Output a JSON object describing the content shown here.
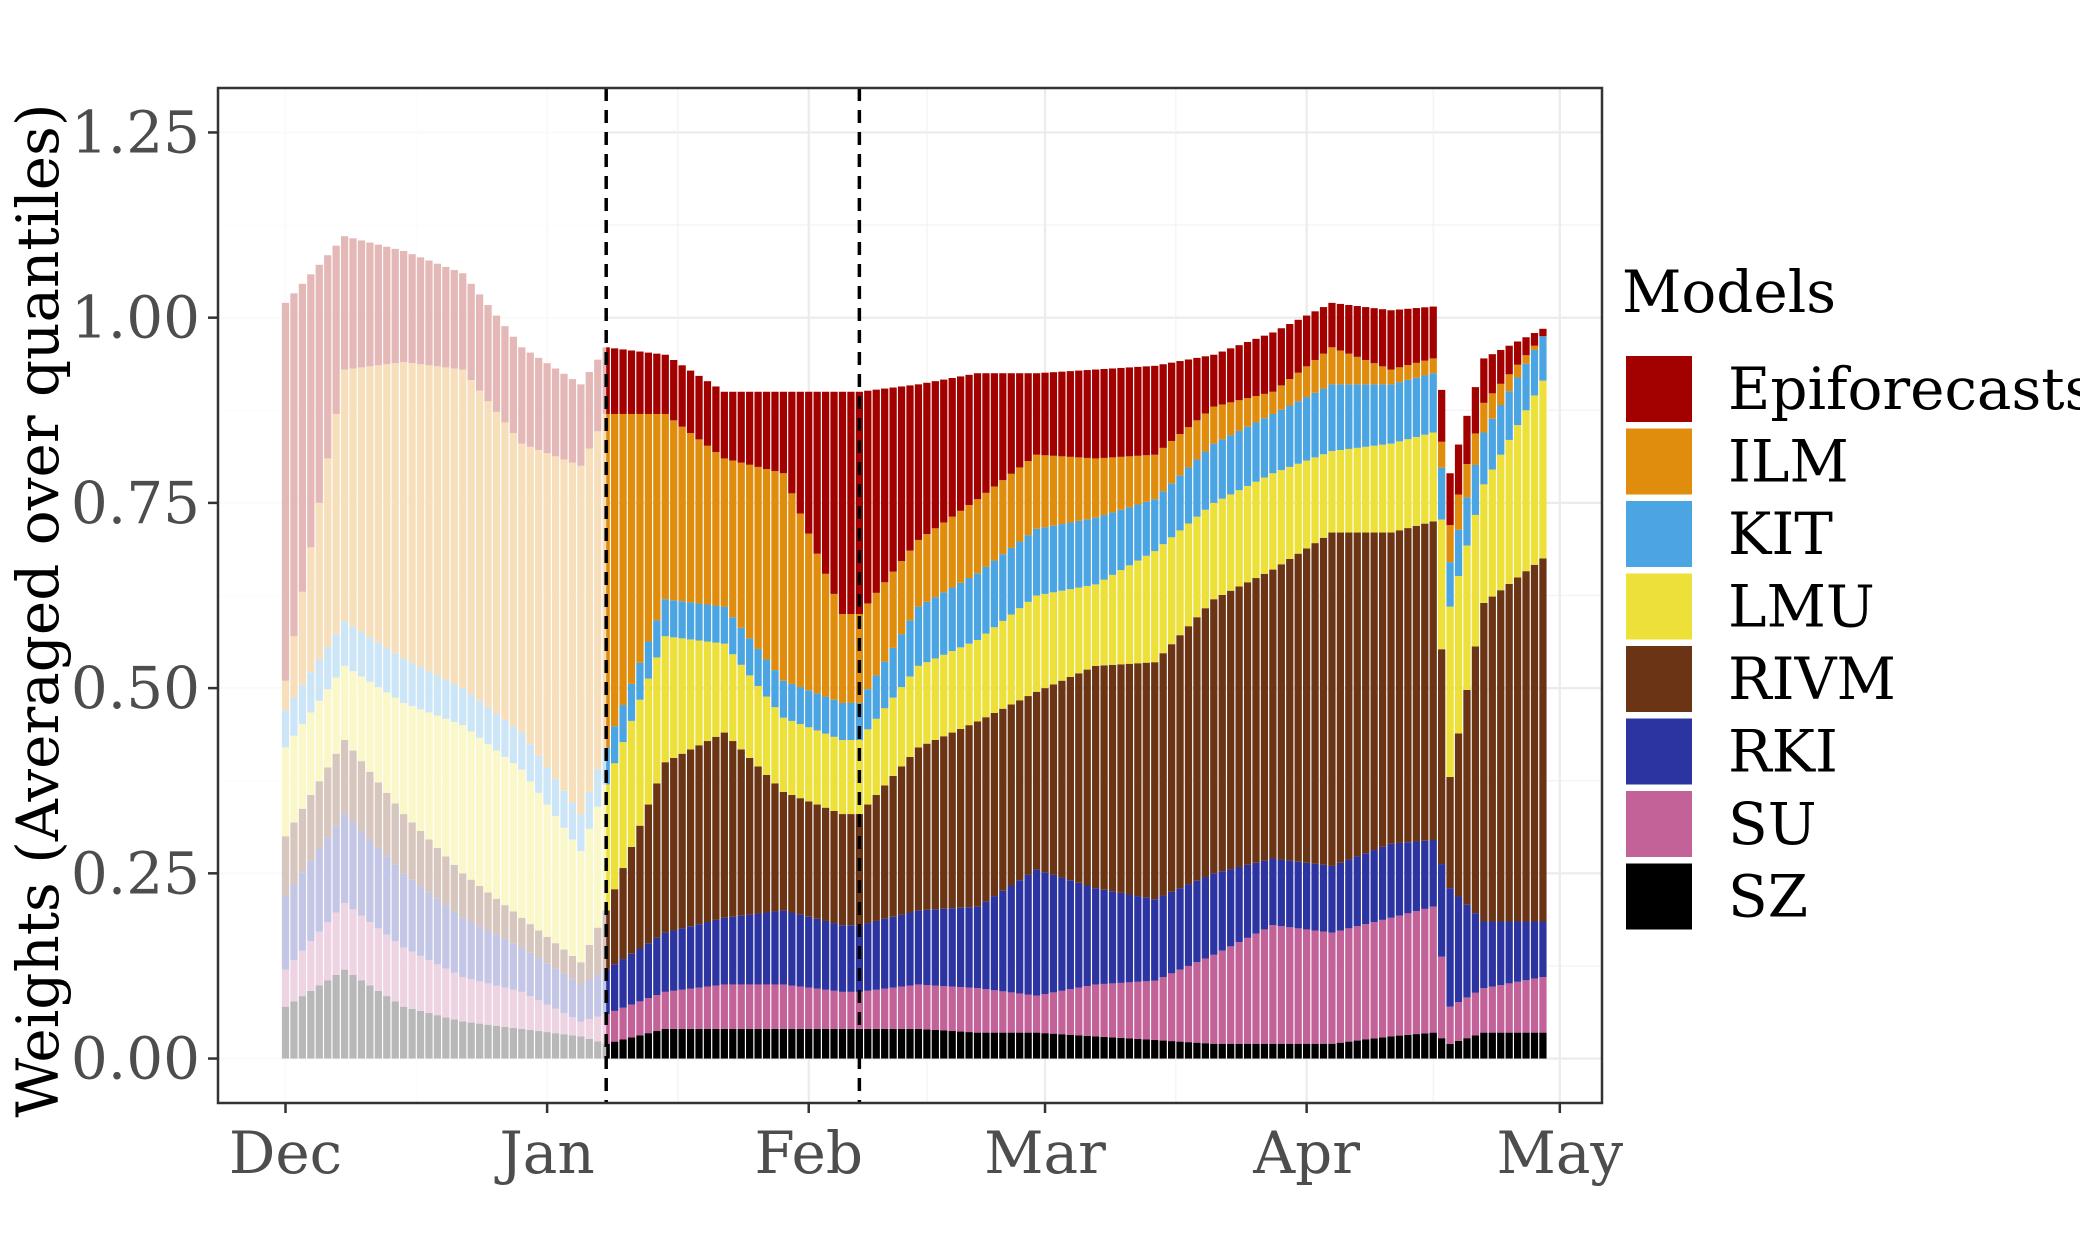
{
  "chart_data": {
    "type": "bar",
    "stacked": true,
    "ylabel": "Weights (Averaged over quantiles)",
    "xlabel": "",
    "ylim": [
      -0.06,
      1.31
    ],
    "yticks": [
      0.0,
      0.25,
      0.5,
      0.75,
      1.0,
      1.25
    ],
    "ytick_labels": [
      "0.00",
      "0.25",
      "0.50",
      "0.75",
      "1.00",
      "1.25"
    ],
    "xlim": [
      "2020-11-23",
      "2021-05-06"
    ],
    "x_ticks": [
      {
        "date": "2020-12-01",
        "label": "Dec"
      },
      {
        "date": "2021-01-01",
        "label": "Jan"
      },
      {
        "date": "2021-02-01",
        "label": "Feb"
      },
      {
        "date": "2021-03-01",
        "label": "Mar"
      },
      {
        "date": "2021-04-01",
        "label": "Apr"
      },
      {
        "date": "2021-05-01",
        "label": "May"
      }
    ],
    "grid": true,
    "legend": {
      "title": "Models",
      "position": "right"
    },
    "reference_lines": [
      {
        "date": "2021-01-08",
        "style": "dashed"
      },
      {
        "date": "2021-02-07",
        "style": "dashed"
      }
    ],
    "faded_before": "2021-01-08",
    "dates": [
      "2020-12-01",
      "2020-12-08",
      "2020-12-15",
      "2020-12-22",
      "2020-12-29",
      "2021-01-05",
      "2021-01-08",
      "2021-01-15",
      "2021-01-22",
      "2021-01-29",
      "2021-02-05",
      "2021-02-07",
      "2021-02-14",
      "2021-02-21",
      "2021-02-28",
      "2021-03-07",
      "2021-03-14",
      "2021-03-21",
      "2021-03-28",
      "2021-04-04",
      "2021-04-11",
      "2021-04-16",
      "2021-04-18",
      "2021-04-22",
      "2021-04-29"
    ],
    "series": [
      {
        "name": "SZ",
        "color": "#000000",
        "values": [
          0.07,
          0.12,
          0.07,
          0.05,
          0.04,
          0.03,
          0.02,
          0.04,
          0.04,
          0.04,
          0.04,
          0.04,
          0.04,
          0.035,
          0.035,
          0.03,
          0.025,
          0.02,
          0.02,
          0.02,
          0.03,
          0.035,
          0.02,
          0.035,
          0.035
        ]
      },
      {
        "name": "SU",
        "color": "#c36199",
        "values": [
          0.05,
          0.09,
          0.08,
          0.06,
          0.05,
          0.02,
          0.04,
          0.05,
          0.06,
          0.06,
          0.05,
          0.05,
          0.06,
          0.06,
          0.05,
          0.07,
          0.08,
          0.12,
          0.16,
          0.15,
          0.16,
          0.17,
          0.05,
          0.06,
          0.075
        ]
      },
      {
        "name": "RKI",
        "color": "#2c34a2",
        "values": [
          0.1,
          0.12,
          0.1,
          0.08,
          0.06,
          0.05,
          0.06,
          0.08,
          0.09,
          0.1,
          0.09,
          0.09,
          0.1,
          0.11,
          0.17,
          0.13,
          0.11,
          0.11,
          0.09,
          0.09,
          0.1,
          0.09,
          0.16,
          0.09,
          0.075
        ]
      },
      {
        "name": "RIVM",
        "color": "#6b3515",
        "values": [
          0.08,
          0.1,
          0.08,
          0.06,
          0.04,
          0.03,
          0.08,
          0.23,
          0.25,
          0.16,
          0.15,
          0.15,
          0.22,
          0.25,
          0.24,
          0.3,
          0.32,
          0.37,
          0.39,
          0.45,
          0.42,
          0.43,
          0.15,
          0.43,
          0.49
        ]
      },
      {
        "name": "LMU",
        "color": "#ece039",
        "values": [
          0.12,
          0.1,
          0.15,
          0.2,
          0.2,
          0.15,
          0.17,
          0.17,
          0.12,
          0.1,
          0.1,
          0.1,
          0.11,
          0.11,
          0.13,
          0.11,
          0.15,
          0.13,
          0.13,
          0.11,
          0.12,
          0.12,
          0.23,
          0.16,
          0.24
        ]
      },
      {
        "name": "KIT",
        "color": "#4aa5e2",
        "values": [
          0.05,
          0.06,
          0.06,
          0.05,
          0.05,
          0.05,
          0.05,
          0.05,
          0.05,
          0.05,
          0.05,
          0.05,
          0.08,
          0.09,
          0.09,
          0.09,
          0.07,
          0.08,
          0.08,
          0.09,
          0.08,
          0.08,
          0.06,
          0.07,
          0.06
        ]
      },
      {
        "name": "ILM",
        "color": "#e08d0d",
        "values": [
          0.04,
          0.34,
          0.4,
          0.43,
          0.39,
          0.47,
          0.45,
          0.25,
          0.2,
          0.28,
          0.12,
          0.12,
          0.09,
          0.1,
          0.1,
          0.08,
          0.06,
          0.05,
          0.03,
          0.05,
          0.02,
          0.02,
          0.05,
          0.04,
          0.0
        ]
      },
      {
        "name": "Epiforecasts",
        "color": "#a30000",
        "values": [
          0.51,
          0.18,
          0.15,
          0.13,
          0.13,
          0.11,
          0.09,
          0.08,
          0.09,
          0.11,
          0.3,
          0.3,
          0.21,
          0.17,
          0.11,
          0.12,
          0.12,
          0.07,
          0.08,
          0.06,
          0.08,
          0.07,
          0.07,
          0.06,
          0.01
        ]
      }
    ]
  }
}
